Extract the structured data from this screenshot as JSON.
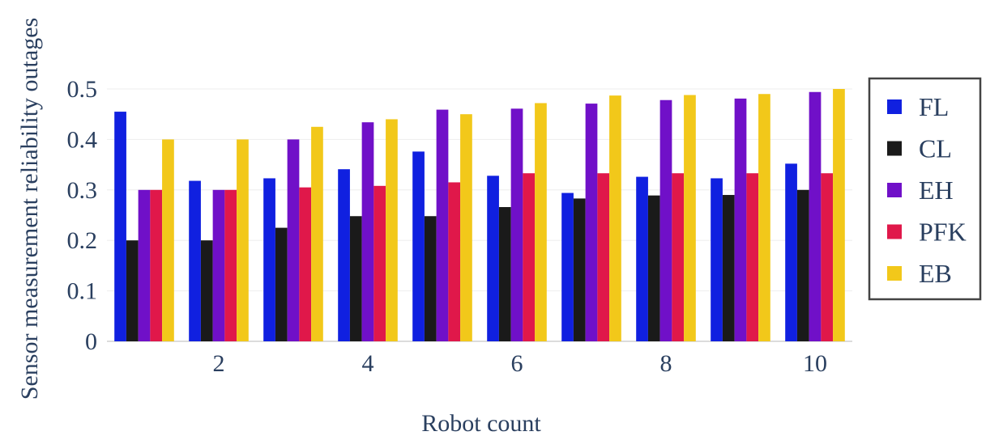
{
  "chart_data": {
    "type": "bar",
    "title": "",
    "xlabel": "Robot count",
    "ylabel": "Sensor measurement reliability outages",
    "x": [
      1,
      2,
      3,
      4,
      5,
      6,
      7,
      8,
      9,
      10
    ],
    "xticks": [
      "2",
      "4",
      "6",
      "8",
      "10"
    ],
    "xtick_values": [
      2,
      4,
      6,
      8,
      10
    ],
    "yticks": [
      "0",
      "0.1",
      "0.2",
      "0.3",
      "0.4",
      "0.5"
    ],
    "ytick_values": [
      0,
      0.1,
      0.2,
      0.3,
      0.4,
      0.5
    ],
    "ylim": [
      0,
      0.5
    ],
    "xlim": [
      0.5,
      10.5
    ],
    "grid": true,
    "legend_position": "right",
    "series": [
      {
        "name": "FL",
        "color": "#1020e0",
        "values": [
          0.455,
          0.318,
          0.323,
          0.341,
          0.376,
          0.328,
          0.294,
          0.326,
          0.323,
          0.352
        ]
      },
      {
        "name": "CL",
        "color": "#1a1a1a",
        "values": [
          0.2,
          0.2,
          0.225,
          0.248,
          0.248,
          0.266,
          0.283,
          0.289,
          0.29,
          0.3
        ]
      },
      {
        "name": "EH",
        "color": "#7010c8",
        "values": [
          0.3,
          0.3,
          0.4,
          0.434,
          0.459,
          0.461,
          0.471,
          0.478,
          0.481,
          0.494
        ]
      },
      {
        "name": "PFK",
        "color": "#e0184a",
        "values": [
          0.3,
          0.3,
          0.305,
          0.308,
          0.315,
          0.333,
          0.333,
          0.333,
          0.333,
          0.333
        ]
      },
      {
        "name": "EB",
        "color": "#f2c81a",
        "values": [
          0.4,
          0.4,
          0.425,
          0.44,
          0.45,
          0.472,
          0.487,
          0.488,
          0.49,
          0.5
        ]
      }
    ]
  }
}
